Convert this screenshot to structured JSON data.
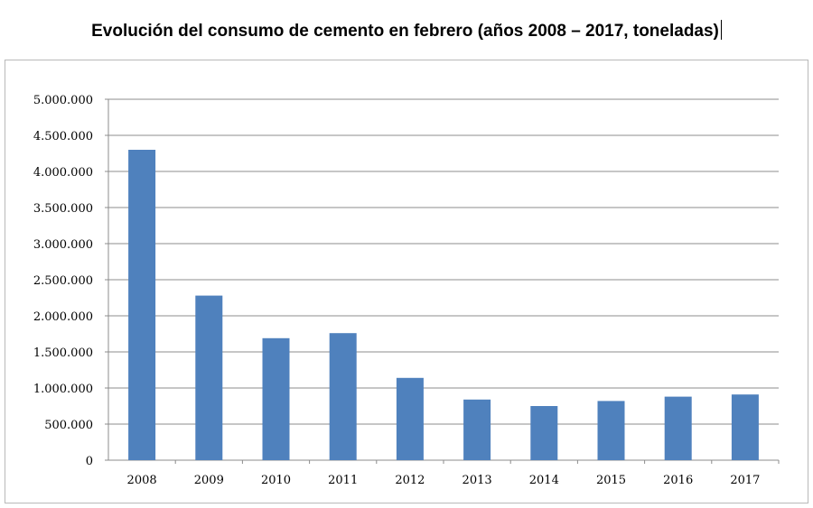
{
  "title": "Evolución del consumo de cemento en febrero (años 2008 – 2017, toneladas)",
  "colors": {
    "bar": "#4f81bd",
    "grid": "#8c8c8c",
    "axis": "#8c8c8c"
  },
  "chart_data": {
    "type": "bar",
    "title": "Evolución del consumo de cemento en febrero (años 2008 – 2017, toneladas)",
    "xlabel": "",
    "ylabel": "",
    "categories": [
      "2008",
      "2009",
      "2010",
      "2011",
      "2012",
      "2013",
      "2014",
      "2015",
      "2016",
      "2017"
    ],
    "values": [
      4300000,
      2280000,
      1690000,
      1760000,
      1140000,
      840000,
      750000,
      820000,
      880000,
      910000
    ],
    "ylim": [
      0,
      5000000
    ],
    "yticks": [
      0,
      500000,
      1000000,
      1500000,
      2000000,
      2500000,
      3000000,
      3500000,
      4000000,
      4500000,
      5000000
    ],
    "ytick_labels": [
      "0",
      "500.000",
      "1.000.000",
      "1.500.000",
      "2.000.000",
      "2.500.000",
      "3.000.000",
      "3.500.000",
      "4.000.000",
      "4.500.000",
      "5.000.000"
    ],
    "grid": true,
    "legend": "none"
  }
}
